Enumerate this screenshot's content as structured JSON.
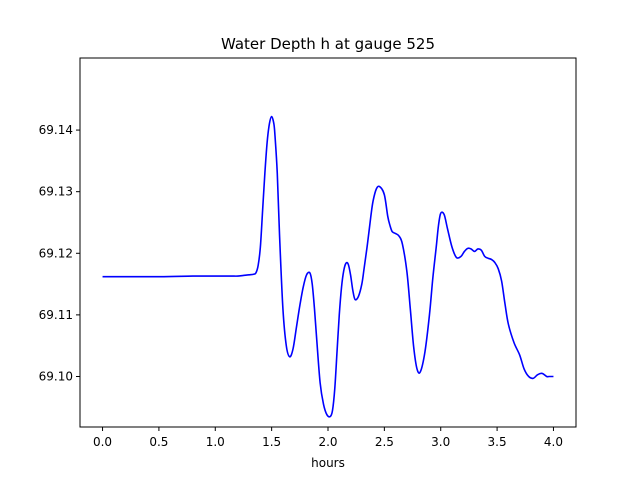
{
  "chart_data": {
    "type": "line",
    "title": "Water Depth h at gauge 525",
    "xlabel": "hours",
    "ylabel": "",
    "xlim": [
      -0.2,
      4.2
    ],
    "ylim": [
      69.0918,
      69.1517
    ],
    "grid": false,
    "x_ticks": [
      "0.0",
      "0.5",
      "1.0",
      "1.5",
      "2.0",
      "2.5",
      "3.0",
      "3.5",
      "4.0"
    ],
    "y_ticks": [
      "69.10",
      "69.11",
      "69.12",
      "69.13",
      "69.14"
    ],
    "series": [
      {
        "color": "#0000ff",
        "x": [
          0.0,
          0.5,
          0.8,
          1.0,
          1.05,
          1.1,
          1.15,
          1.2,
          1.25,
          1.3,
          1.34,
          1.36,
          1.38,
          1.4,
          1.42,
          1.44,
          1.46,
          1.48,
          1.5,
          1.52,
          1.53,
          1.55,
          1.57,
          1.6,
          1.63,
          1.66,
          1.69,
          1.72,
          1.75,
          1.78,
          1.81,
          1.84,
          1.86,
          1.88,
          1.9,
          1.93,
          1.96,
          1.99,
          2.02,
          2.04,
          2.06,
          2.08,
          2.1,
          2.12,
          2.14,
          2.16,
          2.18,
          2.2,
          2.22,
          2.24,
          2.27,
          2.3,
          2.32,
          2.35,
          2.38,
          2.4,
          2.43,
          2.46,
          2.5,
          2.53,
          2.55,
          2.57,
          2.6,
          2.63,
          2.66,
          2.7,
          2.73,
          2.76,
          2.79,
          2.82,
          2.86,
          2.9,
          2.93,
          2.96,
          2.98,
          3.0,
          3.03,
          3.06,
          3.1,
          3.14,
          3.18,
          3.21,
          3.24,
          3.27,
          3.3,
          3.33,
          3.36,
          3.39,
          3.42,
          3.45,
          3.48,
          3.51,
          3.54,
          3.57,
          3.6,
          3.65,
          3.7,
          3.74,
          3.78,
          3.82,
          3.86,
          3.9,
          3.94,
          3.96,
          3.98,
          4.0
        ],
        "y": [
          69.1162,
          69.1162,
          69.1163,
          69.1163,
          69.1163,
          69.1163,
          69.1163,
          69.1163,
          69.1164,
          69.1165,
          69.1166,
          69.1168,
          69.118,
          69.121,
          69.127,
          69.133,
          69.138,
          69.141,
          69.1422,
          69.141,
          69.139,
          69.133,
          69.123,
          69.111,
          69.105,
          69.1032,
          69.1045,
          69.108,
          69.1115,
          69.1145,
          69.1165,
          69.1168,
          69.115,
          69.111,
          69.106,
          69.099,
          69.0955,
          69.0938,
          69.0935,
          69.0945,
          69.098,
          69.104,
          69.11,
          69.1145,
          69.1172,
          69.1184,
          69.1182,
          69.1165,
          69.114,
          69.1125,
          69.113,
          69.115,
          69.1175,
          69.1215,
          69.126,
          69.1285,
          69.1305,
          69.1308,
          69.1295,
          69.126,
          69.1245,
          69.1235,
          69.1232,
          69.1228,
          69.1215,
          69.117,
          69.111,
          69.1048,
          69.1012,
          69.1008,
          69.104,
          69.11,
          69.116,
          69.121,
          69.1245,
          69.1265,
          69.1263,
          69.124,
          69.121,
          69.1193,
          69.1195,
          69.1203,
          69.1208,
          69.1207,
          69.1203,
          69.1207,
          69.1205,
          69.1195,
          69.1192,
          69.119,
          69.1185,
          69.1175,
          69.1155,
          69.1118,
          69.1085,
          69.1055,
          69.1035,
          69.1012,
          69.1,
          69.0997,
          69.1003,
          69.1005,
          69.1,
          69.1,
          69.1,
          69.1
        ]
      }
    ]
  }
}
